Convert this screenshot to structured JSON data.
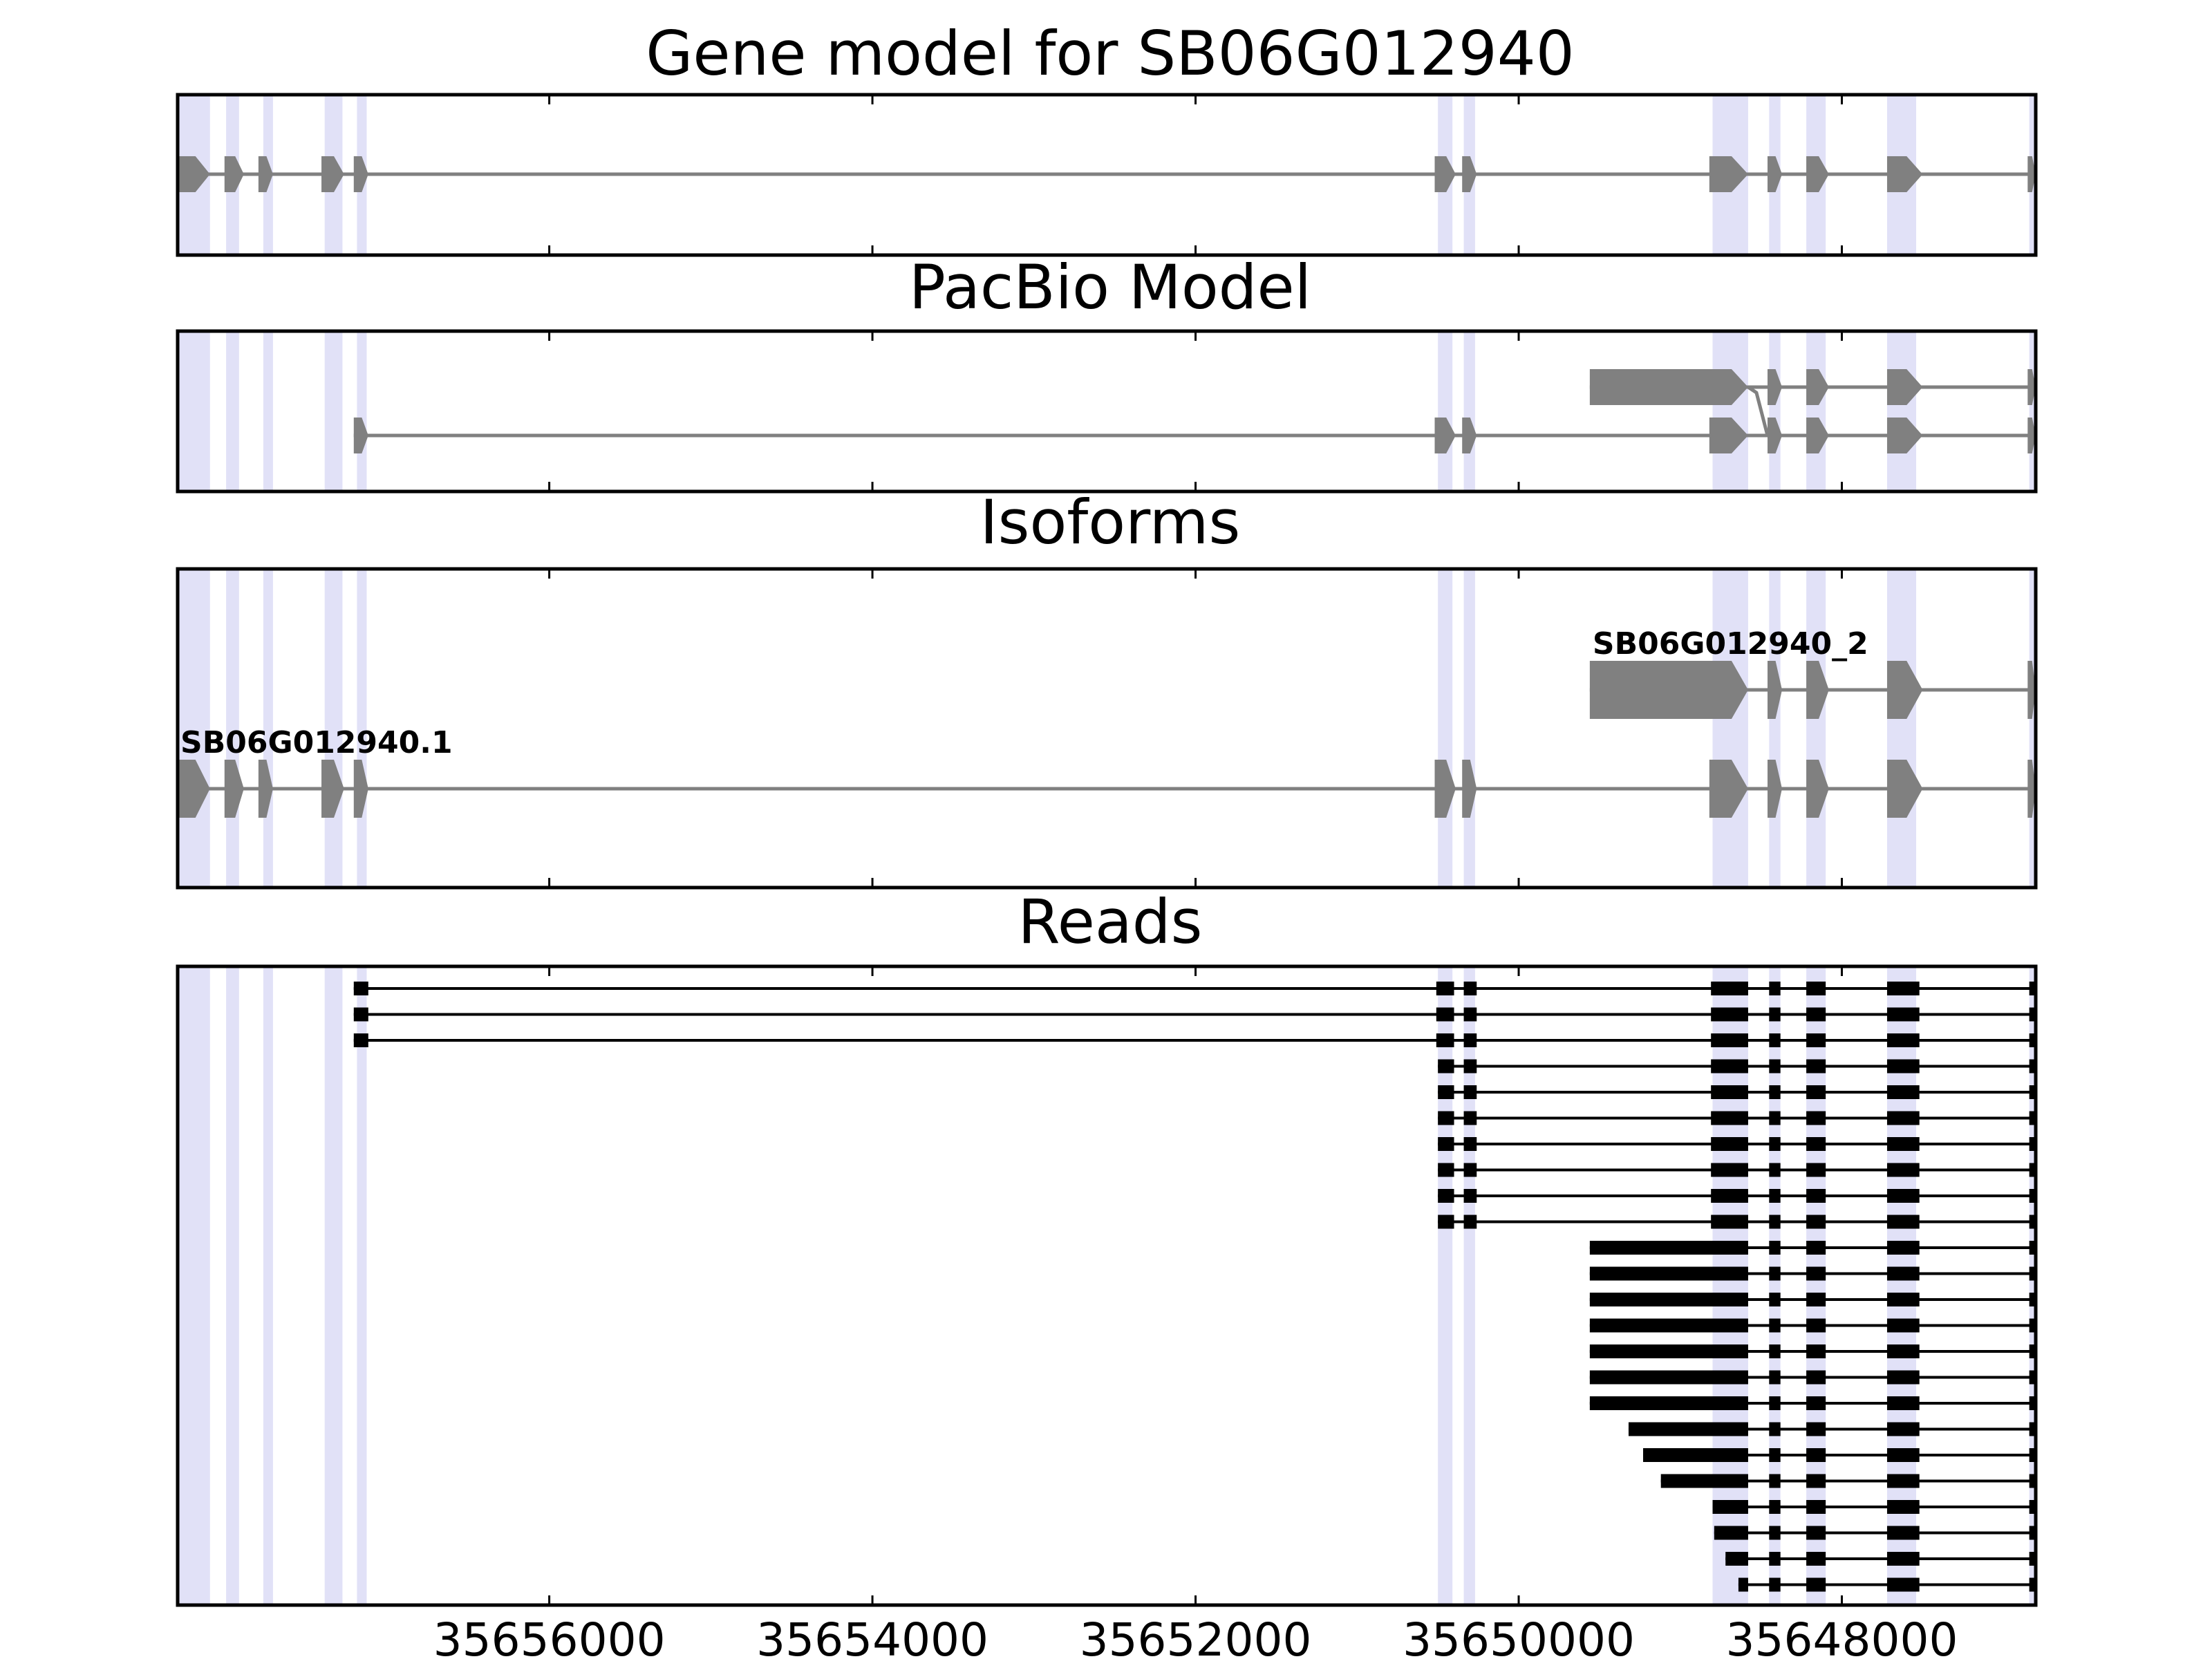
{
  "figure_title": "Gene model for SB06G012940",
  "colors": {
    "highlight": "#e1e1f7",
    "model_fill": "#808080",
    "read_fill": "#000000",
    "frame": "#000000"
  },
  "axis": {
    "x_min": 35658300,
    "x_max": 35646800,
    "reversed": true,
    "ticks": [
      35656000,
      35654000,
      35652000,
      35650000,
      35648000
    ],
    "tick_labels": [
      "35656000",
      "35654000",
      "35652000",
      "35650000",
      "35648000"
    ]
  },
  "highlights": [
    [
      35658290,
      35658100
    ],
    [
      35658000,
      35657920
    ],
    [
      35657770,
      35657710
    ],
    [
      35657390,
      35657280
    ],
    [
      35657190,
      35657130
    ],
    [
      35650500,
      35650410
    ],
    [
      35650340,
      35650270
    ],
    [
      35648800,
      35648580
    ],
    [
      35648450,
      35648380
    ],
    [
      35648220,
      35648100
    ],
    [
      35647720,
      35647540
    ],
    [
      35646840,
      35646810
    ]
  ],
  "panels": [
    {
      "title": "Gene model",
      "title_text": "Gene model for SB06G012940",
      "kind": "model",
      "tracks": [
        {
          "name": "",
          "exons": [
            [
              35658300,
              35658100
            ],
            [
              35658010,
              35657890
            ],
            [
              35657800,
              35657710
            ],
            [
              35657410,
              35657270
            ],
            [
              35657210,
              35657120
            ],
            [
              35650520,
              35650390
            ],
            [
              35650350,
              35650260
            ],
            [
              35648820,
              35648580
            ],
            [
              35648460,
              35648370
            ],
            [
              35648220,
              35648080
            ],
            [
              35647720,
              35647500
            ],
            [
              35646850,
              35646800
            ]
          ]
        }
      ]
    },
    {
      "title": "PacBio Model",
      "title_text": "PacBio Model",
      "kind": "model",
      "tracks": [
        {
          "name": "",
          "exons": [
            [
              35657210,
              35657120
            ],
            [
              35650520,
              35650390
            ],
            [
              35650350,
              35650260
            ],
            [
              35648820,
              35648580
            ],
            [
              35648460,
              35648370
            ],
            [
              35648220,
              35648080
            ],
            [
              35647720,
              35647500
            ],
            [
              35646850,
              35646800
            ]
          ]
        },
        {
          "name": "",
          "exons": [
            [
              35649560,
              35648580
            ],
            [
              35648460,
              35648370
            ],
            [
              35648220,
              35648080
            ],
            [
              35647720,
              35647500
            ],
            [
              35646850,
              35646800
            ]
          ]
        }
      ]
    },
    {
      "title": "Isoforms",
      "title_text": "Isoforms",
      "kind": "isoform",
      "tracks": [
        {
          "name": "SB06G012940.1",
          "exons": [
            [
              35658300,
              35658100
            ],
            [
              35658010,
              35657890
            ],
            [
              35657800,
              35657710
            ],
            [
              35657410,
              35657270
            ],
            [
              35657210,
              35657120
            ],
            [
              35650520,
              35650390
            ],
            [
              35650350,
              35650260
            ],
            [
              35648820,
              35648580
            ],
            [
              35648460,
              35648370
            ],
            [
              35648220,
              35648080
            ],
            [
              35647720,
              35647500
            ],
            [
              35646850,
              35646800
            ]
          ]
        },
        {
          "name": "SB06G012940_2",
          "exons": [
            [
              35649560,
              35648580
            ],
            [
              35648460,
              35648370
            ],
            [
              35648220,
              35648080
            ],
            [
              35647720,
              35647500
            ],
            [
              35646850,
              35646800
            ]
          ]
        }
      ]
    },
    {
      "title": "Reads",
      "title_text": "Reads",
      "kind": "reads",
      "tracks": [
        {
          "exons": [
            [
              35657210,
              35657120
            ],
            [
              35650510,
              35650400
            ],
            [
              35650340,
              35650260
            ],
            [
              35648810,
              35648580
            ],
            [
              35648450,
              35648380
            ],
            [
              35648220,
              35648100
            ],
            [
              35647720,
              35647520
            ],
            [
              35646840,
              35646810
            ]
          ]
        },
        {
          "exons": [
            [
              35657210,
              35657120
            ],
            [
              35650510,
              35650400
            ],
            [
              35650340,
              35650260
            ],
            [
              35648810,
              35648580
            ],
            [
              35648450,
              35648380
            ],
            [
              35648220,
              35648100
            ],
            [
              35647720,
              35647520
            ],
            [
              35646840,
              35646810
            ]
          ]
        },
        {
          "exons": [
            [
              35657210,
              35657120
            ],
            [
              35650510,
              35650400
            ],
            [
              35650340,
              35650260
            ],
            [
              35648810,
              35648580
            ],
            [
              35648450,
              35648380
            ],
            [
              35648220,
              35648100
            ],
            [
              35647720,
              35647520
            ],
            [
              35646840,
              35646810
            ]
          ]
        },
        {
          "exons": [
            [
              35650500,
              35650400
            ],
            [
              35650340,
              35650260
            ],
            [
              35648810,
              35648580
            ],
            [
              35648450,
              35648380
            ],
            [
              35648220,
              35648100
            ],
            [
              35647720,
              35647520
            ],
            [
              35646840,
              35646810
            ]
          ]
        },
        {
          "exons": [
            [
              35650500,
              35650400
            ],
            [
              35650340,
              35650260
            ],
            [
              35648810,
              35648580
            ],
            [
              35648450,
              35648380
            ],
            [
              35648220,
              35648100
            ],
            [
              35647720,
              35647520
            ],
            [
              35646840,
              35646810
            ]
          ]
        },
        {
          "exons": [
            [
              35650500,
              35650400
            ],
            [
              35650340,
              35650260
            ],
            [
              35648810,
              35648580
            ],
            [
              35648450,
              35648380
            ],
            [
              35648220,
              35648100
            ],
            [
              35647720,
              35647520
            ],
            [
              35646840,
              35646810
            ]
          ]
        },
        {
          "exons": [
            [
              35650500,
              35650400
            ],
            [
              35650340,
              35650260
            ],
            [
              35648810,
              35648580
            ],
            [
              35648450,
              35648380
            ],
            [
              35648220,
              35648100
            ],
            [
              35647720,
              35647520
            ],
            [
              35646840,
              35646810
            ]
          ]
        },
        {
          "exons": [
            [
              35650500,
              35650400
            ],
            [
              35650340,
              35650260
            ],
            [
              35648810,
              35648580
            ],
            [
              35648450,
              35648380
            ],
            [
              35648220,
              35648100
            ],
            [
              35647720,
              35647520
            ],
            [
              35646840,
              35646810
            ]
          ]
        },
        {
          "exons": [
            [
              35650500,
              35650400
            ],
            [
              35650340,
              35650260
            ],
            [
              35648810,
              35648580
            ],
            [
              35648450,
              35648380
            ],
            [
              35648220,
              35648100
            ],
            [
              35647720,
              35647520
            ],
            [
              35646840,
              35646810
            ]
          ]
        },
        {
          "exons": [
            [
              35650500,
              35650400
            ],
            [
              35650340,
              35650260
            ],
            [
              35648810,
              35648580
            ],
            [
              35648450,
              35648380
            ],
            [
              35648220,
              35648100
            ],
            [
              35647720,
              35647520
            ],
            [
              35646840,
              35646810
            ]
          ]
        },
        {
          "exons": [
            [
              35649560,
              35648580
            ],
            [
              35648450,
              35648380
            ],
            [
              35648220,
              35648100
            ],
            [
              35647720,
              35647520
            ],
            [
              35646840,
              35646810
            ]
          ]
        },
        {
          "exons": [
            [
              35649560,
              35648580
            ],
            [
              35648450,
              35648380
            ],
            [
              35648220,
              35648100
            ],
            [
              35647720,
              35647520
            ],
            [
              35646840,
              35646810
            ]
          ]
        },
        {
          "exons": [
            [
              35649560,
              35648580
            ],
            [
              35648450,
              35648380
            ],
            [
              35648220,
              35648100
            ],
            [
              35647720,
              35647520
            ],
            [
              35646840,
              35646810
            ]
          ]
        },
        {
          "exons": [
            [
              35649560,
              35648580
            ],
            [
              35648450,
              35648380
            ],
            [
              35648220,
              35648100
            ],
            [
              35647720,
              35647520
            ],
            [
              35646840,
              35646810
            ]
          ]
        },
        {
          "exons": [
            [
              35649560,
              35648580
            ],
            [
              35648450,
              35648380
            ],
            [
              35648220,
              35648100
            ],
            [
              35647720,
              35647520
            ],
            [
              35646840,
              35646810
            ]
          ]
        },
        {
          "exons": [
            [
              35649560,
              35648580
            ],
            [
              35648450,
              35648380
            ],
            [
              35648220,
              35648100
            ],
            [
              35647720,
              35647520
            ],
            [
              35646840,
              35646810
            ]
          ]
        },
        {
          "exons": [
            [
              35649560,
              35648580
            ],
            [
              35648450,
              35648380
            ],
            [
              35648220,
              35648100
            ],
            [
              35647720,
              35647520
            ],
            [
              35646840,
              35646810
            ]
          ]
        },
        {
          "exons": [
            [
              35649320,
              35648580
            ],
            [
              35648450,
              35648380
            ],
            [
              35648220,
              35648100
            ],
            [
              35647720,
              35647520
            ],
            [
              35646840,
              35646810
            ]
          ]
        },
        {
          "exons": [
            [
              35649230,
              35648580
            ],
            [
              35648450,
              35648380
            ],
            [
              35648220,
              35648100
            ],
            [
              35647720,
              35647520
            ],
            [
              35646840,
              35646810
            ]
          ]
        },
        {
          "exons": [
            [
              35649120,
              35648580
            ],
            [
              35648450,
              35648380
            ],
            [
              35648220,
              35648100
            ],
            [
              35647720,
              35647520
            ],
            [
              35646840,
              35646810
            ]
          ]
        },
        {
          "exons": [
            [
              35648800,
              35648580
            ],
            [
              35648450,
              35648380
            ],
            [
              35648220,
              35648100
            ],
            [
              35647720,
              35647520
            ],
            [
              35646840,
              35646810
            ]
          ]
        },
        {
          "exons": [
            [
              35648790,
              35648580
            ],
            [
              35648450,
              35648380
            ],
            [
              35648220,
              35648100
            ],
            [
              35647720,
              35647520
            ],
            [
              35646840,
              35646810
            ]
          ]
        },
        {
          "exons": [
            [
              35648720,
              35648580
            ],
            [
              35648450,
              35648380
            ],
            [
              35648220,
              35648100
            ],
            [
              35647720,
              35647520
            ],
            [
              35646840,
              35646810
            ]
          ]
        },
        {
          "exons": [
            [
              35648640,
              35648580
            ],
            [
              35648450,
              35648380
            ],
            [
              35648220,
              35648100
            ],
            [
              35647720,
              35647520
            ],
            [
              35646840,
              35646810
            ]
          ]
        }
      ]
    }
  ]
}
